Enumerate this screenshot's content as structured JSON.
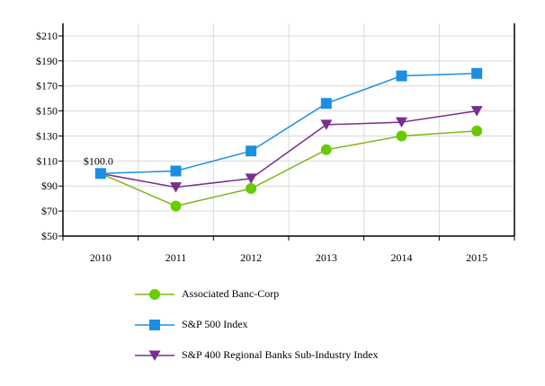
{
  "chart_data": {
    "type": "line",
    "title": "",
    "xlabel": "",
    "ylabel": "",
    "categories": [
      "2010",
      "2011",
      "2012",
      "2013",
      "2014",
      "2015"
    ],
    "ylim": [
      50,
      220
    ],
    "yticks": [
      50,
      70,
      90,
      110,
      130,
      150,
      170,
      190,
      210
    ],
    "ytick_labels": [
      "$50",
      "$70",
      "$90",
      "$110",
      "$130",
      "$150",
      "$170",
      "$190",
      "$210"
    ],
    "grid": true,
    "legend_position": "bottom",
    "annotation": {
      "text": "$100.0",
      "category": "2010",
      "value": 100
    },
    "series": [
      {
        "name": "Associated Banc-Corp",
        "marker": "circle",
        "line_color": "#7FB518",
        "marker_color": "#66CC00",
        "values": [
          100,
          74,
          88,
          119,
          130,
          134
        ]
      },
      {
        "name": "S&P 500 Index",
        "marker": "square",
        "line_color": "#1A8FE3",
        "marker_color": "#1A8FE3",
        "values": [
          100,
          102,
          118,
          156,
          178,
          180
        ]
      },
      {
        "name": "S&P 400 Regional Banks Sub-Industry Index",
        "marker": "triangle-down",
        "line_color": "#7B2E8E",
        "marker_color": "#7B2E8E",
        "values": [
          100,
          89,
          96,
          139,
          141,
          150
        ]
      }
    ]
  }
}
